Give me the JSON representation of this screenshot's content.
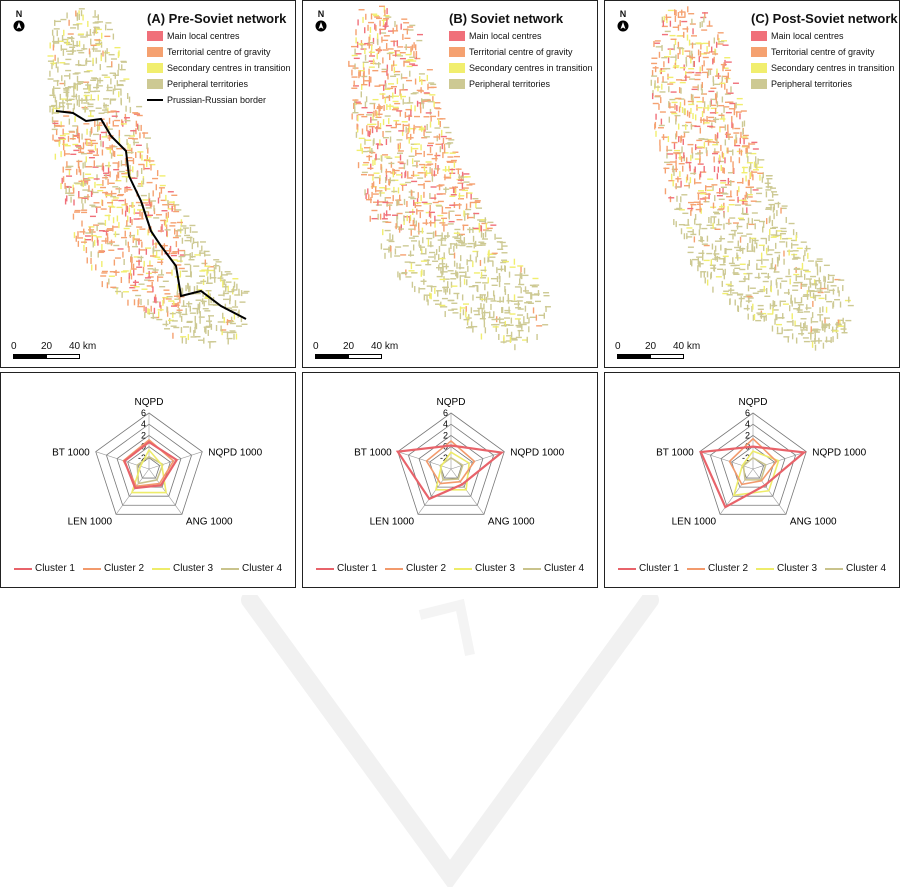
{
  "colors": {
    "main": "#f0707a",
    "territorial": "#f5a170",
    "secondary": "#f1ee6e",
    "peripheral": "#cdc993",
    "border": "#000000"
  },
  "north_label": "N",
  "scale": {
    "zero": "0",
    "mid": "20",
    "end": "40 km"
  },
  "maps": [
    {
      "title": "(A) Pre-Soviet network",
      "legend": [
        {
          "label": "Main local centres",
          "color": "#f0707a"
        },
        {
          "label": "Territorial centre of gravity",
          "color": "#f5a170"
        },
        {
          "label": "Secondary centres in transition",
          "color": "#f1ee6e"
        },
        {
          "label": "Peripheral territories",
          "color": "#cdc993"
        },
        {
          "label": "Prussian-Russian border",
          "color": "#000000",
          "line": true
        }
      ]
    },
    {
      "title": "(B) Soviet network",
      "legend": [
        {
          "label": "Main local centres",
          "color": "#f0707a"
        },
        {
          "label": "Territorial centre of gravity",
          "color": "#f5a170"
        },
        {
          "label": "Secondary centres in transition",
          "color": "#f1ee6e"
        },
        {
          "label": "Peripheral territories",
          "color": "#cdc993"
        }
      ]
    },
    {
      "title": "(C) Post-Soviet network",
      "legend": [
        {
          "label": "Main local centres",
          "color": "#f0707a"
        },
        {
          "label": "Territorial centre of gravity",
          "color": "#f5a170"
        },
        {
          "label": "Secondary centres in transition",
          "color": "#f1ee6e"
        },
        {
          "label": "Peripheral territories",
          "color": "#cdc993"
        }
      ]
    }
  ],
  "radar": {
    "axes": [
      "NQPD",
      "NQPD 1000",
      "ANG 1000",
      "LEN 1000",
      "BT 1000"
    ],
    "ticks": [
      "6",
      "4",
      "2",
      "0",
      "-2"
    ],
    "tick_values": [
      6,
      4,
      2,
      0,
      -2
    ],
    "range": [
      -4,
      6
    ],
    "legend": [
      "Cluster 1",
      "Cluster 2",
      "Cluster 3",
      "Cluster 4"
    ],
    "series_colors": [
      "#e8636a",
      "#f29a6c",
      "#eeec6a",
      "#c9c38c"
    ]
  },
  "chart_data": [
    {
      "type": "radar",
      "axes": [
        "NQPD",
        "NQPD 1000",
        "ANG 1000",
        "LEN 1000",
        "BT 1000"
      ],
      "range": [
        -4,
        6
      ],
      "series": [
        {
          "name": "Cluster 1",
          "values": [
            0.8,
            1.2,
            -0.4,
            0.2,
            0.6
          ]
        },
        {
          "name": "Cluster 2",
          "values": [
            1.2,
            0.6,
            -0.8,
            -0.2,
            0.8
          ]
        },
        {
          "name": "Cluster 3",
          "values": [
            -0.6,
            -1.6,
            1.2,
            1.2,
            -2.4
          ]
        },
        {
          "name": "Cluster 4",
          "values": [
            -1.8,
            -1.4,
            -1.6,
            -0.8,
            -1.8
          ]
        }
      ]
    },
    {
      "type": "radar",
      "axes": [
        "NQPD",
        "NQPD 1000",
        "ANG 1000",
        "LEN 1000",
        "BT 1000"
      ],
      "range": [
        -4,
        6
      ],
      "series": [
        {
          "name": "Cluster 1",
          "values": [
            0.2,
            5.5,
            -0.6,
            2.6,
            6.0
          ]
        },
        {
          "name": "Cluster 2",
          "values": [
            1.0,
            0.4,
            -1.2,
            -0.8,
            0.6
          ]
        },
        {
          "name": "Cluster 3",
          "values": [
            -1.0,
            -0.6,
            0.6,
            0.6,
            -2.2
          ]
        },
        {
          "name": "Cluster 4",
          "values": [
            -2.0,
            -1.8,
            -1.8,
            -1.6,
            -2.0
          ]
        }
      ]
    },
    {
      "type": "radar",
      "axes": [
        "NQPD",
        "NQPD 1000",
        "ANG 1000",
        "LEN 1000",
        "BT 1000"
      ],
      "range": [
        -4,
        6
      ],
      "series": [
        {
          "name": "Cluster 1",
          "values": [
            0.0,
            5.6,
            -0.4,
            4.4,
            5.8
          ]
        },
        {
          "name": "Cluster 2",
          "values": [
            1.4,
            0.4,
            -1.4,
            -0.6,
            0.4
          ]
        },
        {
          "name": "Cluster 3",
          "values": [
            -0.8,
            0.8,
            0.8,
            1.8,
            -2.0
          ]
        },
        {
          "name": "Cluster 4",
          "values": [
            -2.0,
            -1.6,
            -1.6,
            -1.6,
            -2.2
          ]
        }
      ]
    }
  ]
}
